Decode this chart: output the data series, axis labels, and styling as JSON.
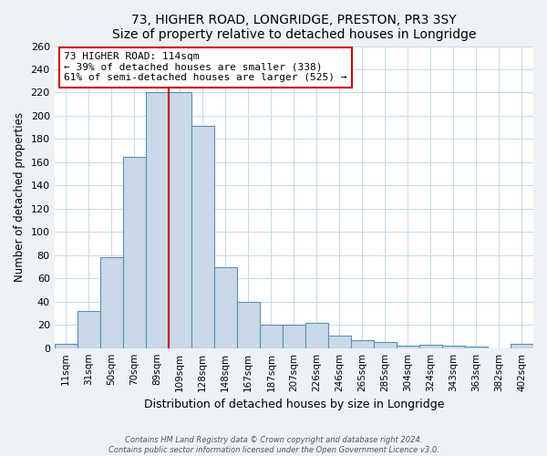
{
  "title": "73, HIGHER ROAD, LONGRIDGE, PRESTON, PR3 3SY",
  "subtitle": "Size of property relative to detached houses in Longridge",
  "xlabel": "Distribution of detached houses by size in Longridge",
  "ylabel": "Number of detached properties",
  "bin_labels": [
    "11sqm",
    "31sqm",
    "50sqm",
    "70sqm",
    "89sqm",
    "109sqm",
    "128sqm",
    "148sqm",
    "167sqm",
    "187sqm",
    "207sqm",
    "226sqm",
    "246sqm",
    "265sqm",
    "285sqm",
    "304sqm",
    "324sqm",
    "343sqm",
    "363sqm",
    "382sqm",
    "402sqm"
  ],
  "bar_heights": [
    4,
    32,
    78,
    165,
    220,
    220,
    191,
    70,
    40,
    20,
    20,
    22,
    11,
    7,
    5,
    2,
    3,
    2,
    1,
    0,
    4
  ],
  "bar_color": "#c9d9e8",
  "bar_edge_color": "#5b8db8",
  "vline_bin_index": 5,
  "vline_color": "#cc0000",
  "annotation_title": "73 HIGHER ROAD: 114sqm",
  "annotation_line1": "← 39% of detached houses are smaller (338)",
  "annotation_line2": "61% of semi-detached houses are larger (525) →",
  "annotation_box_color": "#ffffff",
  "annotation_box_edge": "#cc0000",
  "ylim": [
    0,
    260
  ],
  "yticks": [
    0,
    20,
    40,
    60,
    80,
    100,
    120,
    140,
    160,
    180,
    200,
    220,
    240,
    260
  ],
  "footer_line1": "Contains HM Land Registry data © Crown copyright and database right 2024.",
  "footer_line2": "Contains public sector information licensed under the Open Government Licence v3.0.",
  "bg_color": "#eef2f7",
  "plot_bg_color": "#ffffff",
  "grid_color": "#c8d8e8"
}
